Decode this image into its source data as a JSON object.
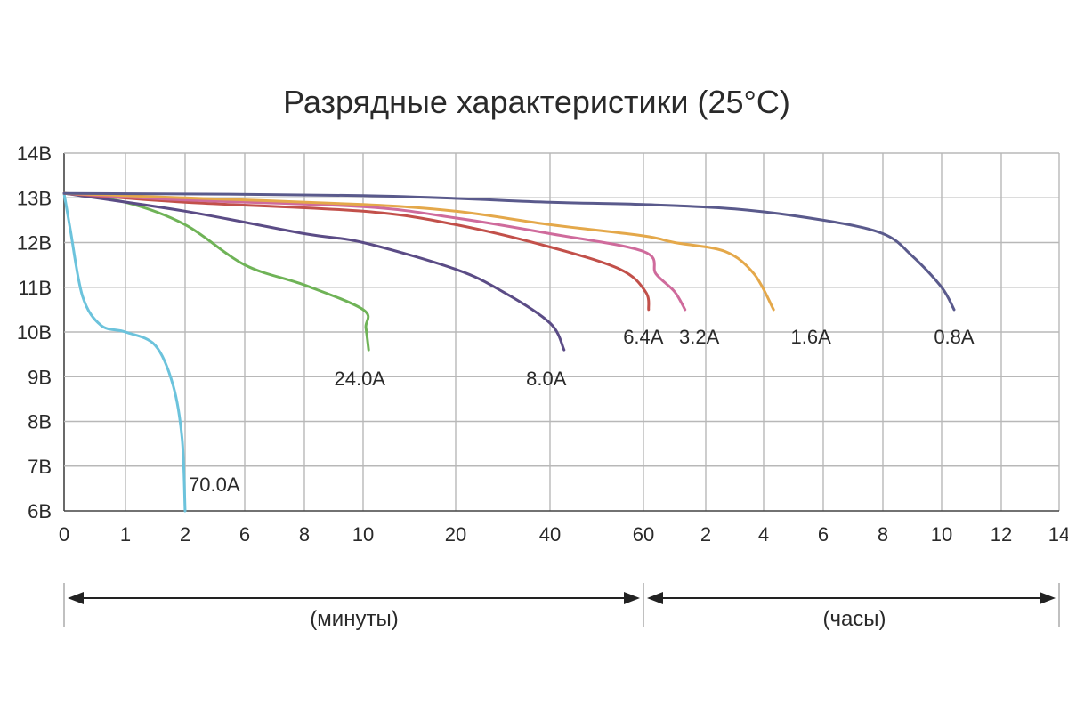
{
  "chart_data": {
    "type": "line",
    "title": "Разрядные характеристики (25°C)",
    "y_ticks": [
      "6В",
      "7В",
      "8В",
      "9В",
      "10В",
      "11В",
      "12В",
      "13В",
      "14В"
    ],
    "ylim": [
      6,
      14
    ],
    "x_tick_labels": [
      "0",
      "1",
      "2",
      "6",
      "8",
      "10",
      "20",
      "40",
      "60",
      "2",
      "4",
      "6",
      "8",
      "10",
      "12",
      "14"
    ],
    "x_sections": [
      {
        "label": "(минуты)",
        "unit": "minutes"
      },
      {
        "label": "(часы)",
        "unit": "hours"
      }
    ],
    "grid": true,
    "series": [
      {
        "name": "70.0A",
        "color": "#6cc3dc",
        "label": "70.0A",
        "points": [
          [
            0,
            13.1
          ],
          [
            0.1,
            12.3
          ],
          [
            0.3,
            10.8
          ],
          [
            0.6,
            10.15
          ],
          [
            1,
            10.0
          ],
          [
            1.5,
            9.7
          ],
          [
            1.8,
            8.8
          ],
          [
            1.95,
            7.6
          ],
          [
            2,
            6.0
          ]
        ]
      },
      {
        "name": "24.0A",
        "color": "#6fb357",
        "label": "24.0A",
        "points": [
          [
            0,
            13.1
          ],
          [
            1,
            12.9
          ],
          [
            2,
            12.4
          ],
          [
            6,
            11.5
          ],
          [
            8,
            11.05
          ],
          [
            10,
            10.5
          ],
          [
            10.3,
            10.1
          ],
          [
            10.6,
            9.6
          ]
        ]
      },
      {
        "name": "8.0A",
        "color": "#5b4c86",
        "label": "8.0A",
        "points": [
          [
            0,
            13.1
          ],
          [
            2,
            12.7
          ],
          [
            8,
            12.2
          ],
          [
            10,
            12.0
          ],
          [
            20,
            11.4
          ],
          [
            30,
            10.9
          ],
          [
            40,
            10.2
          ],
          [
            43,
            9.6
          ]
        ]
      },
      {
        "name": "6.4A",
        "color": "#c2504a",
        "label": "6.4A",
        "points": [
          [
            0,
            13.1
          ],
          [
            2,
            12.9
          ],
          [
            10,
            12.7
          ],
          [
            20,
            12.4
          ],
          [
            40,
            11.9
          ],
          [
            55,
            11.4
          ],
          [
            62,
            10.9
          ],
          [
            65,
            10.5
          ]
        ]
      },
      {
        "name": "3.2A",
        "color": "#cf6b9c",
        "label": "3.2A",
        "points": [
          [
            0,
            13.1
          ],
          [
            2,
            12.95
          ],
          [
            10,
            12.8
          ],
          [
            20,
            12.55
          ],
          [
            40,
            12.2
          ],
          [
            60,
            11.8
          ],
          [
            72,
            11.3
          ],
          [
            90,
            10.9
          ],
          [
            100,
            10.5
          ]
        ]
      },
      {
        "name": "1.6A",
        "color": "#e4a84a",
        "label": "1.6A",
        "points": [
          [
            0,
            13.1
          ],
          [
            2,
            13.0
          ],
          [
            10,
            12.85
          ],
          [
            20,
            12.7
          ],
          [
            40,
            12.4
          ],
          [
            60,
            12.15
          ],
          [
            90,
            12.0
          ],
          [
            160,
            11.8
          ],
          [
            220,
            11.3
          ],
          [
            260,
            10.5
          ]
        ]
      },
      {
        "name": "0.8A",
        "color": "#5a5a8c",
        "label": "0.8A",
        "points": [
          [
            0,
            13.1
          ],
          [
            10,
            13.05
          ],
          [
            40,
            12.9
          ],
          [
            60,
            12.85
          ],
          [
            180,
            12.75
          ],
          [
            360,
            12.5
          ],
          [
            480,
            12.2
          ],
          [
            540,
            11.7
          ],
          [
            600,
            11.0
          ],
          [
            625,
            10.5
          ]
        ]
      }
    ]
  }
}
